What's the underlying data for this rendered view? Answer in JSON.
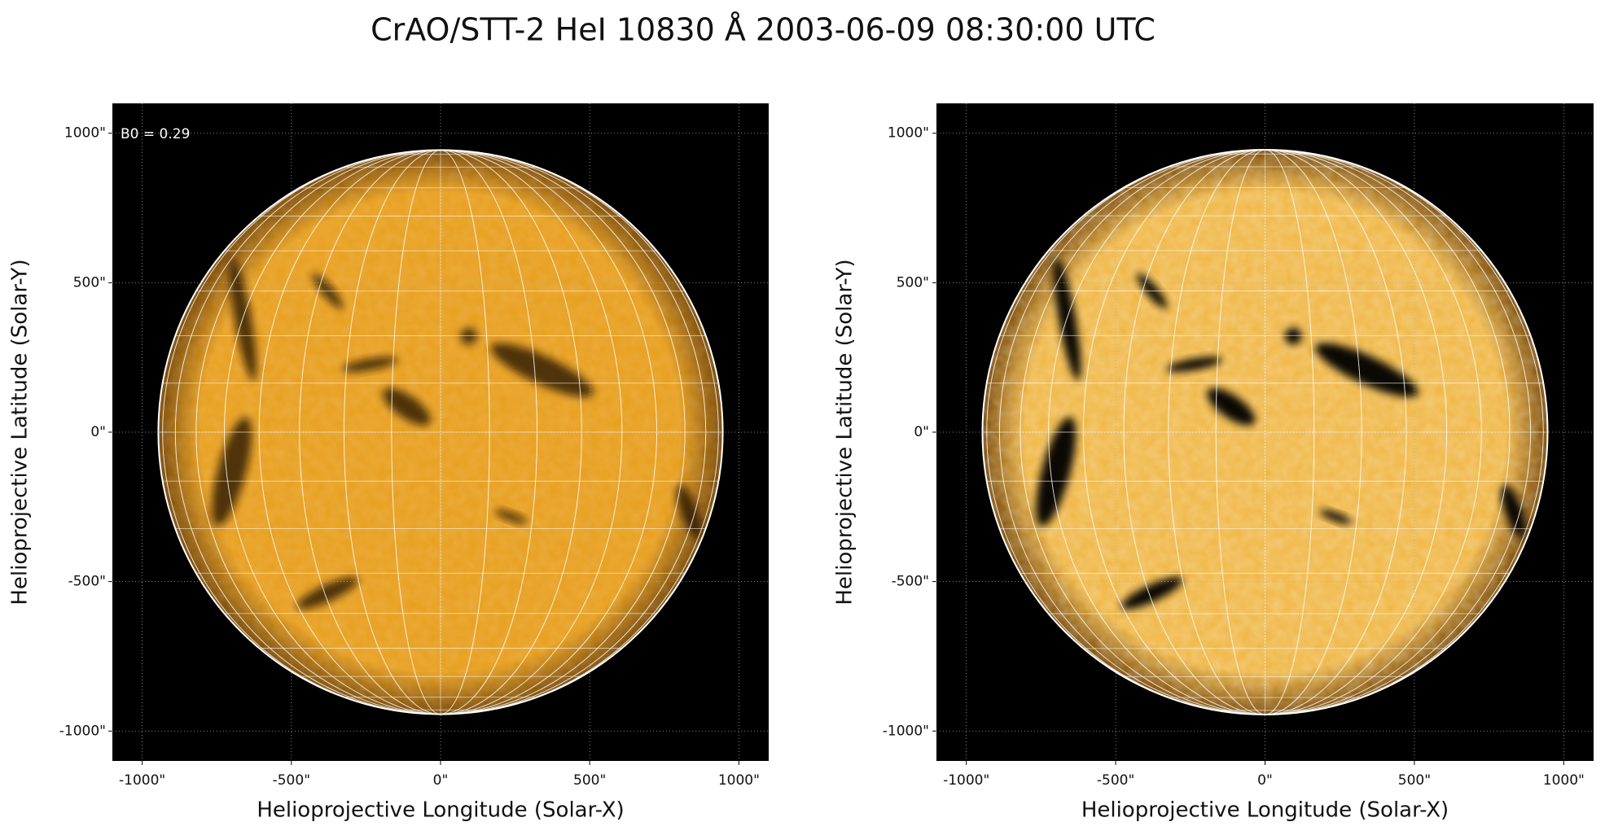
{
  "title": "CrAO/STT-2 HeI 10830 Å 2003-06-09 08:30:00 UTC",
  "chart_data": [
    {
      "type": "image",
      "x_label": "Helioprojective Longitude (Solar-X)",
      "y_label": "Helioprojective Latitude (Solar-Y)",
      "annotations": [
        "B0 = 0.29"
      ],
      "xlim": [
        -1100,
        1100
      ],
      "ylim": [
        -1100,
        1100
      ],
      "xticks": [
        {
          "value": -1000,
          "label": "-1000\""
        },
        {
          "value": -500,
          "label": "-500\""
        },
        {
          "value": 0,
          "label": "0\""
        },
        {
          "value": 500,
          "label": "500\""
        },
        {
          "value": 1000,
          "label": "1000\""
        }
      ],
      "yticks": [
        {
          "value": -1000,
          "label": "-1000\""
        },
        {
          "value": -500,
          "label": "-500\""
        },
        {
          "value": 0,
          "label": "0\""
        },
        {
          "value": 500,
          "label": "500\""
        },
        {
          "value": 1000,
          "label": "1000\""
        }
      ],
      "grid": true,
      "color": "#e8a020"
    },
    {
      "type": "image",
      "x_label": "Helioprojective Longitude (Solar-X)",
      "y_label": "Helioprojective Latitude (Solar-Y)",
      "xlim": [
        -1100,
        1100
      ],
      "ylim": [
        -1100,
        1100
      ],
      "xticks": [
        {
          "value": -1000,
          "label": "-1000\""
        },
        {
          "value": -500,
          "label": "-500\""
        },
        {
          "value": 0,
          "label": "0\""
        },
        {
          "value": 500,
          "label": "500\""
        },
        {
          "value": 1000,
          "label": "1000\""
        }
      ],
      "yticks": [
        {
          "value": -1000,
          "label": "-1000\""
        },
        {
          "value": -500,
          "label": "-500\""
        },
        {
          "value": 0,
          "label": "0\""
        },
        {
          "value": 500,
          "label": "500\""
        },
        {
          "value": 1000,
          "label": "1000\""
        }
      ],
      "grid": true,
      "color": "#f0b848"
    }
  ]
}
